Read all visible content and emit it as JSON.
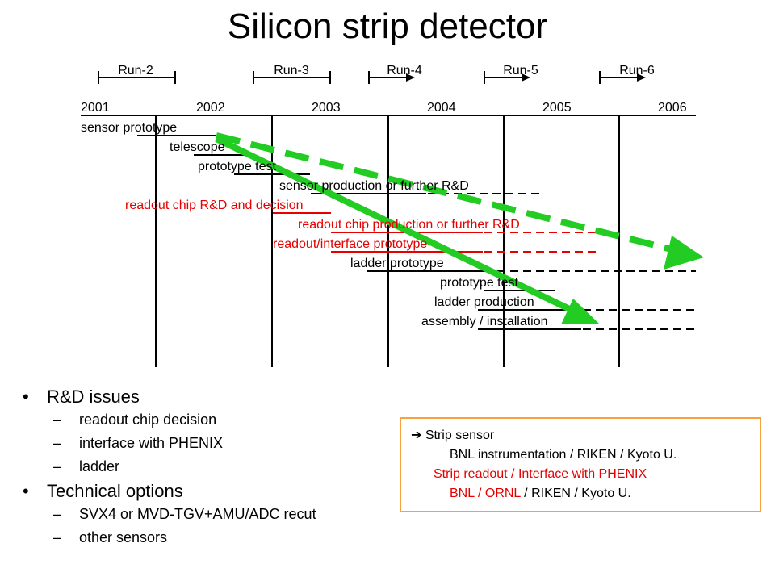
{
  "title": "Silicon strip detector",
  "runs": [
    "Run-2",
    "Run-3",
    "Run-4",
    "Run-5",
    "Run-6"
  ],
  "years": [
    "2001",
    "2002",
    "2003",
    "2004",
    "2005",
    "2006"
  ],
  "tasks": [
    {
      "label": "sensor prototype",
      "color": "#000000",
      "dashed": false
    },
    {
      "label": "telescope",
      "color": "#000000",
      "dashed": false
    },
    {
      "label": "prototype test",
      "color": "#000000",
      "dashed": false
    },
    {
      "label": "sensor production or further R&D",
      "color": "#000000",
      "dashed": true
    },
    {
      "label": "readout chip R&D and decision",
      "color": "#e60000",
      "dashed": false
    },
    {
      "label": "readout chip production or further R&D",
      "color": "#e60000",
      "dashed": true
    },
    {
      "label": "readout/interface prototype",
      "color": "#e60000",
      "dashed": true
    },
    {
      "label": "ladder prototype",
      "color": "#000000",
      "dashed": true
    },
    {
      "label": "prototype test",
      "color": "#000000",
      "dashed": false
    },
    {
      "label": "ladder production",
      "color": "#000000",
      "dashed": true
    },
    {
      "label": "assembly / installation",
      "color": "#000000",
      "dashed": true
    }
  ],
  "arrow_color": "#22cc22",
  "bullets": {
    "rd_issues": "R&D issues",
    "rd_items": [
      "readout chip decision",
      "interface with PHENIX",
      "ladder"
    ],
    "tech_options": "Technical options",
    "tech_items": [
      "SVX4 or MVD-TGV+AMU/ADC recut",
      "other sensors"
    ]
  },
  "box": {
    "arrow_icon": "right-arrow-icon",
    "line1": "Strip sensor",
    "line2": "BNL instrumentation / RIKEN / Kyoto U.",
    "line3": "Strip readout / Interface with PHENIX",
    "line4_red": "BNL / ORNL",
    "line4_black": " / RIKEN / Kyoto U.",
    "border_color": "#f7a23c",
    "red_color": "#e60000"
  }
}
